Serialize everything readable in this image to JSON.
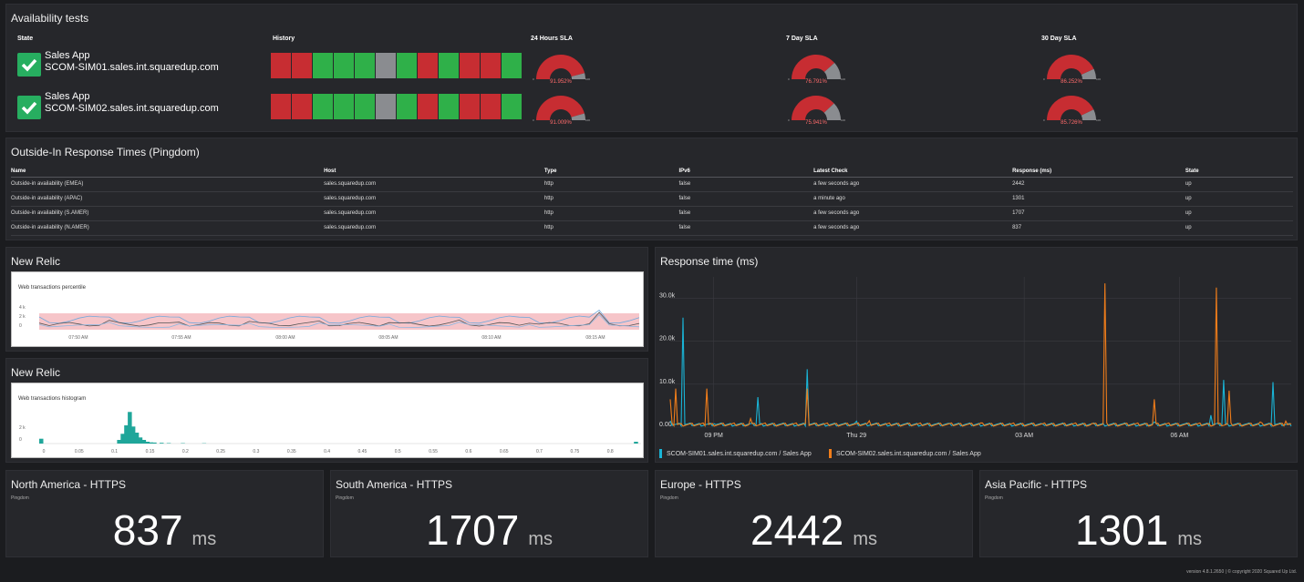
{
  "availability": {
    "title": "Availability tests",
    "headers": {
      "state": "State",
      "history": "History",
      "sla24": "24 Hours SLA",
      "sla7": "7 Day SLA",
      "sla30": "30 Day SLA"
    },
    "rows": [
      {
        "name": "Sales App",
        "host": "SCOM-SIM01.sales.int.squaredup.com",
        "history": [
          "red",
          "red",
          "green",
          "green",
          "green",
          "grey",
          "green",
          "red",
          "green",
          "red",
          "red",
          "green"
        ],
        "sla24": "91.952%",
        "sla7": "76.791%",
        "sla30": "86.252%",
        "sla24_value": 91.952,
        "sla7_value": 76.791,
        "sla30_value": 86.252
      },
      {
        "name": "Sales App",
        "host": "SCOM-SIM02.sales.int.squaredup.com",
        "history": [
          "red",
          "red",
          "green",
          "green",
          "green",
          "grey",
          "green",
          "red",
          "green",
          "red",
          "red",
          "green"
        ],
        "sla24": "91.009%",
        "sla7": "75.941%",
        "sla30": "85.726%",
        "sla24_value": 91.009,
        "sla7_value": 75.941,
        "sla30_value": 85.726
      }
    ],
    "gauge_min": "0",
    "gauge_max": "100",
    "colors": {
      "red": "#c72d32",
      "green": "#2fb049",
      "grey": "#8a8c90"
    }
  },
  "pingdom": {
    "title": "Outside-In Response Times (Pingdom)",
    "columns": [
      "Name",
      "Host",
      "Type",
      "IPv6",
      "Latest Check",
      "Response (ms)",
      "State"
    ],
    "rows": [
      [
        "Outside-in availability (EMEA)",
        "sales.squaredup.com",
        "http",
        "false",
        "a few seconds ago",
        "2442",
        "up"
      ],
      [
        "Outside-in availability (APAC)",
        "sales.squaredup.com",
        "http",
        "false",
        "a minute ago",
        "1301",
        "up"
      ],
      [
        "Outside-in availability (S.AMER)",
        "sales.squaredup.com",
        "http",
        "false",
        "a few seconds ago",
        "1707",
        "up"
      ],
      [
        "Outside-in availability (N.AMER)",
        "sales.squaredup.com",
        "http",
        "false",
        "a few seconds ago",
        "837",
        "up"
      ]
    ]
  },
  "newrelic1": {
    "title": "New Relic",
    "label": "Web transactions percentile",
    "yticks": [
      "4 k",
      "2 k",
      "0"
    ],
    "xticks": [
      "07:50 AM",
      "07:55 AM",
      "08:00 AM",
      "08:05 AM",
      "08:10 AM",
      "08:15 AM"
    ]
  },
  "newrelic2": {
    "title": "New Relic",
    "label": "Web transactions histogram",
    "yticks": [
      "2 k",
      "0"
    ],
    "xticks": [
      "0",
      "0.05",
      "0.1",
      "0.15",
      "0.2",
      "0.25",
      "0.3",
      "0.35",
      "0.4",
      "0.45",
      "0.5",
      "0.55",
      "0.6",
      "0.65",
      "0.7",
      "0.75",
      "0.8"
    ],
    "bars": [
      {
        "x": 0.0,
        "v": 400
      },
      {
        "x": 0.11,
        "v": 300
      },
      {
        "x": 0.115,
        "v": 800
      },
      {
        "x": 0.12,
        "v": 1500
      },
      {
        "x": 0.125,
        "v": 2600
      },
      {
        "x": 0.13,
        "v": 1400
      },
      {
        "x": 0.135,
        "v": 900
      },
      {
        "x": 0.14,
        "v": 500
      },
      {
        "x": 0.145,
        "v": 300
      },
      {
        "x": 0.15,
        "v": 150
      },
      {
        "x": 0.155,
        "v": 100
      },
      {
        "x": 0.16,
        "v": 80
      },
      {
        "x": 0.17,
        "v": 60
      },
      {
        "x": 0.18,
        "v": 40
      },
      {
        "x": 0.2,
        "v": 30
      },
      {
        "x": 0.23,
        "v": 20
      },
      {
        "x": 0.84,
        "v": 150
      }
    ]
  },
  "response": {
    "title": "Response time (ms)",
    "chart_data": {
      "type": "line",
      "ylim": [
        0,
        35000
      ],
      "yticks": [
        "30.0k",
        "20.0k",
        "10.0k",
        "0.00"
      ],
      "xticks": [
        "09 PM",
        "Thu 29",
        "03 AM",
        "06 AM"
      ],
      "series": [
        {
          "name": "SCOM-SIM01.sales.int.squaredup.com / Sales App",
          "color": "#19b4d6",
          "spikes": [
            [
              0.0,
              1500
            ],
            [
              0.02,
              25500
            ],
            [
              0.07,
              800
            ],
            [
              0.14,
              7000
            ],
            [
              0.22,
              13500
            ],
            [
              0.3,
              1400
            ],
            [
              0.45,
              900
            ],
            [
              0.6,
              700
            ],
            [
              0.78,
              1200
            ],
            [
              0.87,
              2800
            ],
            [
              0.89,
              11000
            ],
            [
              0.97,
              10500
            ]
          ]
        },
        {
          "name": "SCOM-SIM02.sales.int.squaredup.com / Sales App",
          "color": "#f07d1a",
          "spikes": [
            [
              0.0,
              6500
            ],
            [
              0.01,
              9000
            ],
            [
              0.06,
              9000
            ],
            [
              0.13,
              2000
            ],
            [
              0.22,
              9000
            ],
            [
              0.32,
              1500
            ],
            [
              0.5,
              1000
            ],
            [
              0.68,
              900
            ],
            [
              0.7,
              33500
            ],
            [
              0.78,
              6500
            ],
            [
              0.88,
              32500
            ],
            [
              0.9,
              8500
            ],
            [
              0.95,
              1200
            ],
            [
              0.99,
              1400
            ]
          ]
        }
      ]
    }
  },
  "metrics": [
    {
      "title": "North America - HTTPS",
      "sub": "Pingdom",
      "value": "837",
      "unit": "ms"
    },
    {
      "title": "South America - HTTPS",
      "sub": "Pingdom",
      "value": "1707",
      "unit": "ms"
    },
    {
      "title": "Europe - HTTPS",
      "sub": "Pingdom",
      "value": "2442",
      "unit": "ms"
    },
    {
      "title": "Asia Pacific - HTTPS",
      "sub": "Pingdom",
      "value": "1301",
      "unit": "ms"
    }
  ],
  "footer": "version 4.8.1.2650 | © copyright 2020 Squared Up Ltd."
}
